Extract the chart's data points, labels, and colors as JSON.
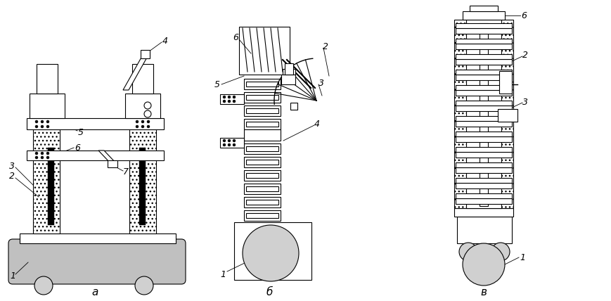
{
  "bg_color": "#ffffff",
  "line_color": "#000000",
  "gray_fill": "#c0c0c0",
  "light_gray": "#d0d0d0",
  "fig_width": 8.7,
  "fig_height": 4.28,
  "label_a": "a",
  "label_b": "б",
  "label_c": "в"
}
